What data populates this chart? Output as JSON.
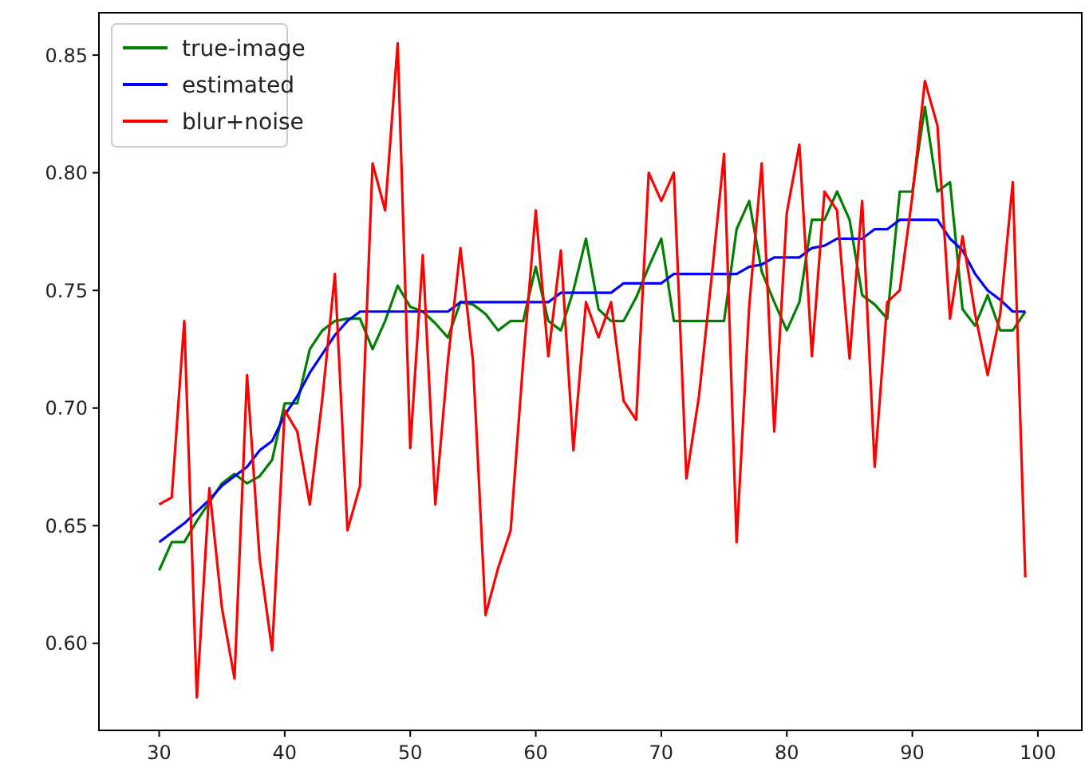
{
  "chart_data": {
    "type": "line",
    "x": [
      30,
      31,
      32,
      33,
      34,
      35,
      36,
      37,
      38,
      39,
      40,
      41,
      42,
      43,
      44,
      45,
      46,
      47,
      48,
      49,
      50,
      51,
      52,
      53,
      54,
      55,
      56,
      57,
      58,
      59,
      60,
      61,
      62,
      63,
      64,
      65,
      66,
      67,
      68,
      69,
      70,
      71,
      72,
      73,
      74,
      75,
      76,
      77,
      78,
      79,
      80,
      81,
      82,
      83,
      84,
      85,
      86,
      87,
      88,
      89,
      90,
      91,
      92,
      93,
      94,
      95,
      96,
      97,
      98,
      99
    ],
    "xlim": [
      25.2,
      103.5
    ],
    "xticks": [
      30,
      40,
      50,
      60,
      70,
      80,
      90,
      100
    ],
    "ylim": [
      0.563,
      0.868
    ],
    "yticks": [
      {
        "value": 0.6,
        "label": "0.60"
      },
      {
        "value": 0.65,
        "label": "0.65"
      },
      {
        "value": 0.7,
        "label": "0.70"
      },
      {
        "value": 0.75,
        "label": "0.75"
      },
      {
        "value": 0.8,
        "label": "0.80"
      },
      {
        "value": 0.85,
        "label": "0.85"
      }
    ],
    "legend": "top left",
    "grid": false,
    "series": [
      {
        "name": "true-image",
        "color": "#008000",
        "values": [
          0.631,
          0.643,
          0.643,
          0.652,
          0.66,
          0.668,
          0.672,
          0.668,
          0.671,
          0.678,
          0.702,
          0.702,
          0.725,
          0.733,
          0.737,
          0.738,
          0.738,
          0.725,
          0.737,
          0.752,
          0.743,
          0.741,
          0.736,
          0.73,
          0.745,
          0.744,
          0.74,
          0.733,
          0.737,
          0.737,
          0.76,
          0.737,
          0.733,
          0.75,
          0.772,
          0.742,
          0.737,
          0.737,
          0.747,
          0.76,
          0.772,
          0.737,
          0.737,
          0.737,
          0.737,
          0.737,
          0.776,
          0.788,
          0.758,
          0.745,
          0.733,
          0.745,
          0.78,
          0.78,
          0.792,
          0.78,
          0.748,
          0.744,
          0.738,
          0.792,
          0.792,
          0.828,
          0.792,
          0.796,
          0.742,
          0.735,
          0.748,
          0.733,
          0.733,
          0.741
        ]
      },
      {
        "name": "estimated",
        "color": "#0000ff",
        "values": [
          0.643,
          0.647,
          0.651,
          0.656,
          0.661,
          0.667,
          0.671,
          0.675,
          0.682,
          0.686,
          0.697,
          0.705,
          0.715,
          0.723,
          0.731,
          0.737,
          0.741,
          0.741,
          0.741,
          0.741,
          0.741,
          0.741,
          0.741,
          0.741,
          0.745,
          0.745,
          0.745,
          0.745,
          0.745,
          0.745,
          0.745,
          0.745,
          0.749,
          0.749,
          0.749,
          0.749,
          0.749,
          0.753,
          0.753,
          0.753,
          0.753,
          0.757,
          0.757,
          0.757,
          0.757,
          0.757,
          0.757,
          0.76,
          0.761,
          0.764,
          0.764,
          0.764,
          0.768,
          0.769,
          0.772,
          0.772,
          0.772,
          0.776,
          0.776,
          0.78,
          0.78,
          0.78,
          0.78,
          0.772,
          0.767,
          0.757,
          0.75,
          0.746,
          0.741,
          0.741
        ]
      },
      {
        "name": "blur+noise",
        "color": "#ff0000",
        "values": [
          0.659,
          0.662,
          0.737,
          0.577,
          0.666,
          0.615,
          0.585,
          0.714,
          0.636,
          0.597,
          0.699,
          0.69,
          0.659,
          0.704,
          0.757,
          0.648,
          0.667,
          0.804,
          0.784,
          0.855,
          0.683,
          0.765,
          0.659,
          0.72,
          0.768,
          0.72,
          0.612,
          0.632,
          0.648,
          0.72,
          0.784,
          0.722,
          0.767,
          0.682,
          0.745,
          0.73,
          0.745,
          0.703,
          0.695,
          0.8,
          0.788,
          0.8,
          0.67,
          0.705,
          0.755,
          0.808,
          0.643,
          0.743,
          0.804,
          0.69,
          0.783,
          0.812,
          0.722,
          0.792,
          0.784,
          0.721,
          0.788,
          0.675,
          0.745,
          0.75,
          0.79,
          0.839,
          0.82,
          0.738,
          0.773,
          0.74,
          0.714,
          0.74,
          0.796,
          0.628
        ]
      }
    ]
  }
}
